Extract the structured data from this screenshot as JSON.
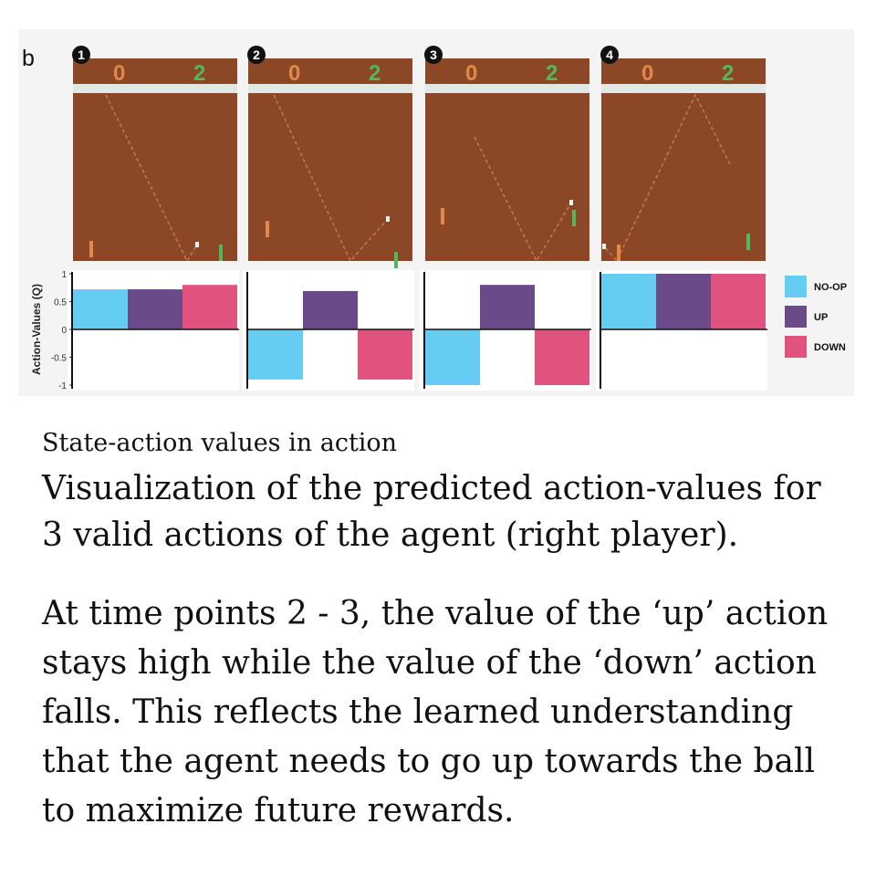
{
  "figure": {
    "panel_letter": "b",
    "frames": [
      {
        "label": "1",
        "score_left": "0",
        "score_right": "2"
      },
      {
        "label": "2",
        "score_left": "0",
        "score_right": "2"
      },
      {
        "label": "3",
        "score_left": "0",
        "score_right": "2"
      },
      {
        "label": "4",
        "score_left": "0",
        "score_right": "2"
      }
    ]
  },
  "chart_data": {
    "type": "bar",
    "ylabel": "Action-Values (Q)",
    "ylim": [
      -1,
      1
    ],
    "yticks": [
      1,
      0.5,
      0,
      -0.5,
      -1
    ],
    "yticklabels": [
      "1",
      "0.5",
      "0",
      "-0.5",
      "-1"
    ],
    "categories": [
      "1",
      "2",
      "3",
      "4"
    ],
    "series": [
      {
        "name": "NO-OP",
        "color": "#66cdf2",
        "values": [
          0.72,
          -0.9,
          -1.0,
          1.0
        ]
      },
      {
        "name": "UP",
        "color": "#6a4a88",
        "values": [
          0.72,
          0.69,
          0.8,
          1.0
        ]
      },
      {
        "name": "DOWN",
        "color": "#e2527e",
        "values": [
          0.8,
          -0.9,
          -1.0,
          1.0
        ]
      }
    ],
    "legend_position": "right"
  },
  "caption": {
    "small": "State-action values in action",
    "lead": "Visualization of the predicted action-values for 3 valid actions of the agent (right player).",
    "body": "At time points 2 - 3, the value of the ‘up’ action stays high while the value of the ‘down’ action falls. This reflects the learned understanding that the agent needs to go up towards the ball to maximize future rewards."
  }
}
